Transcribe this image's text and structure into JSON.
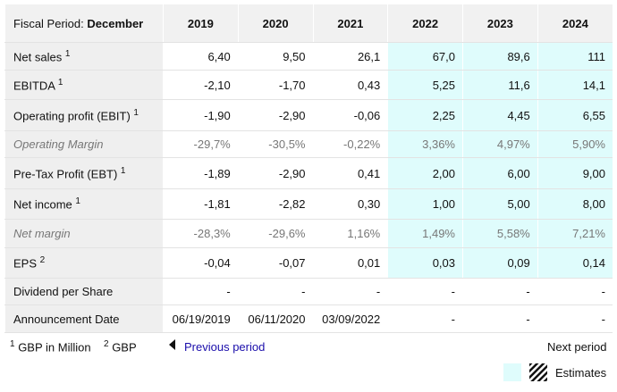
{
  "header": {
    "label": "Fiscal Period:",
    "period": "December",
    "years": [
      "2019",
      "2020",
      "2021",
      "2022",
      "2023",
      "2024"
    ]
  },
  "rows": [
    {
      "label": "Net sales",
      "note": "1",
      "cells": [
        "6,40",
        "9,50",
        "26,1",
        "67,0",
        "89,6",
        "111"
      ]
    },
    {
      "label": "EBITDA",
      "note": "1",
      "cells": [
        "-2,10",
        "-1,70",
        "0,43",
        "5,25",
        "11,6",
        "14,1"
      ]
    },
    {
      "label": "Operating profit (EBIT)",
      "note": "1",
      "cells": [
        "-1,90",
        "-2,90",
        "-0,06",
        "2,25",
        "4,45",
        "6,55"
      ]
    },
    {
      "label": "Operating Margin",
      "cells": [
        "-29,7%",
        "-30,5%",
        "-0,22%",
        "3,36%",
        "4,97%",
        "5,90%"
      ]
    },
    {
      "label": "Pre-Tax Profit (EBT)",
      "note": "1",
      "cells": [
        "-1,89",
        "-2,90",
        "0,41",
        "2,00",
        "6,00",
        "9,00"
      ]
    },
    {
      "label": "Net income",
      "note": "1",
      "cells": [
        "-1,81",
        "-2,82",
        "0,30",
        "1,00",
        "5,00",
        "8,00"
      ]
    },
    {
      "label": "Net margin",
      "cells": [
        "-28,3%",
        "-29,6%",
        "1,16%",
        "1,49%",
        "5,58%",
        "7,21%"
      ]
    },
    {
      "label": "EPS",
      "note": "2",
      "cells": [
        "-0,04",
        "-0,07",
        "0,01",
        "0,03",
        "0,09",
        "0,14"
      ]
    },
    {
      "label": "Dividend per Share",
      "cells": [
        "-",
        "-",
        "-",
        "-",
        "-",
        "-"
      ]
    },
    {
      "label": "Announcement Date",
      "cells": [
        "06/19/2019",
        "06/11/2020",
        "03/09/2022",
        "-",
        "-",
        "-"
      ]
    }
  ],
  "footnotes": [
    {
      "mark": "1",
      "text": "GBP in Million"
    },
    {
      "mark": "2",
      "text": "GBP"
    }
  ],
  "nav": {
    "previous": "Previous period",
    "next": "Next period"
  },
  "legend": {
    "estimates": "Estimates"
  }
}
